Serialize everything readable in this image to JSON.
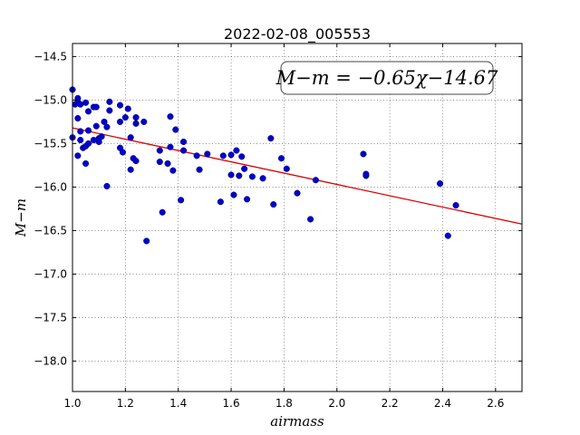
{
  "chart_data": {
    "type": "scatter",
    "title": "2022-02-08_005553",
    "xlabel": "airmass",
    "ylabel": "M−m",
    "xlim": [
      1.0,
      2.7
    ],
    "ylim": [
      -18.35,
      -14.35
    ],
    "xticks": [
      "1.0",
      "1.2",
      "1.4",
      "1.6",
      "1.8",
      "2.0",
      "2.2",
      "2.4",
      "2.6"
    ],
    "yticks": [
      "−14.5",
      "−15.0",
      "−15.5",
      "−16.0",
      "−16.5",
      "−17.0",
      "−17.5",
      "−18.0"
    ],
    "grid": true,
    "annotation": "M−m = −0.65χ−14.67",
    "colors": {
      "points": "#0000cc",
      "fit": "#dd0000"
    },
    "fit": {
      "slope": -0.65,
      "intercept": -14.67
    },
    "points": [
      [
        1.0,
        -14.88
      ],
      [
        1.01,
        -15.05
      ],
      [
        1.02,
        -15.02
      ],
      [
        1.02,
        -14.98
      ],
      [
        1.03,
        -15.05
      ],
      [
        1.05,
        -15.03
      ],
      [
        1.06,
        -15.13
      ],
      [
        1.08,
        -15.08
      ],
      [
        1.09,
        -15.08
      ],
      [
        1.02,
        -15.21
      ],
      [
        1.0,
        -15.43
      ],
      [
        1.03,
        -15.36
      ],
      [
        1.03,
        -15.46
      ],
      [
        1.06,
        -15.35
      ],
      [
        1.09,
        -15.3
      ],
      [
        1.1,
        -15.44
      ],
      [
        1.11,
        -15.42
      ],
      [
        1.12,
        -15.25
      ],
      [
        1.14,
        -15.12
      ],
      [
        1.14,
        -15.02
      ],
      [
        1.18,
        -15.06
      ],
      [
        1.18,
        -15.25
      ],
      [
        1.2,
        -15.2
      ],
      [
        1.21,
        -15.1
      ],
      [
        1.24,
        -15.2
      ],
      [
        1.24,
        -15.27
      ],
      [
        1.27,
        -15.25
      ],
      [
        1.04,
        -15.55
      ],
      [
        1.05,
        -15.53
      ],
      [
        1.06,
        -15.5
      ],
      [
        1.08,
        -15.46
      ],
      [
        1.1,
        -15.48
      ],
      [
        1.02,
        -15.64
      ],
      [
        1.05,
        -15.73
      ],
      [
        1.13,
        -15.31
      ],
      [
        1.13,
        -15.99
      ],
      [
        1.18,
        -15.55
      ],
      [
        1.19,
        -15.6
      ],
      [
        1.22,
        -15.43
      ],
      [
        1.22,
        -15.8
      ],
      [
        1.23,
        -15.67
      ],
      [
        1.24,
        -15.7
      ],
      [
        1.28,
        -16.62
      ],
      [
        1.33,
        -15.58
      ],
      [
        1.33,
        -15.71
      ],
      [
        1.34,
        -16.29
      ],
      [
        1.36,
        -15.73
      ],
      [
        1.37,
        -15.54
      ],
      [
        1.37,
        -15.19
      ],
      [
        1.38,
        -15.81
      ],
      [
        1.39,
        -15.34
      ],
      [
        1.41,
        -16.15
      ],
      [
        1.42,
        -15.48
      ],
      [
        1.42,
        -15.58
      ],
      [
        1.47,
        -15.64
      ],
      [
        1.48,
        -15.8
      ],
      [
        1.51,
        -15.62
      ],
      [
        1.56,
        -16.17
      ],
      [
        1.57,
        -15.64
      ],
      [
        1.6,
        -15.63
      ],
      [
        1.6,
        -15.86
      ],
      [
        1.61,
        -16.09
      ],
      [
        1.62,
        -15.58
      ],
      [
        1.63,
        -15.87
      ],
      [
        1.64,
        -15.65
      ],
      [
        1.65,
        -15.79
      ],
      [
        1.66,
        -16.14
      ],
      [
        1.68,
        -15.88
      ],
      [
        1.72,
        -15.9
      ],
      [
        1.75,
        -15.44
      ],
      [
        1.76,
        -16.2
      ],
      [
        1.79,
        -15.67
      ],
      [
        1.81,
        -15.79
      ],
      [
        1.85,
        -16.07
      ],
      [
        1.9,
        -16.37
      ],
      [
        1.92,
        -15.92
      ],
      [
        2.1,
        -15.62
      ],
      [
        2.11,
        -15.87
      ],
      [
        2.11,
        -15.85
      ],
      [
        2.39,
        -15.96
      ],
      [
        2.42,
        -16.56
      ],
      [
        2.45,
        -16.21
      ]
    ]
  }
}
